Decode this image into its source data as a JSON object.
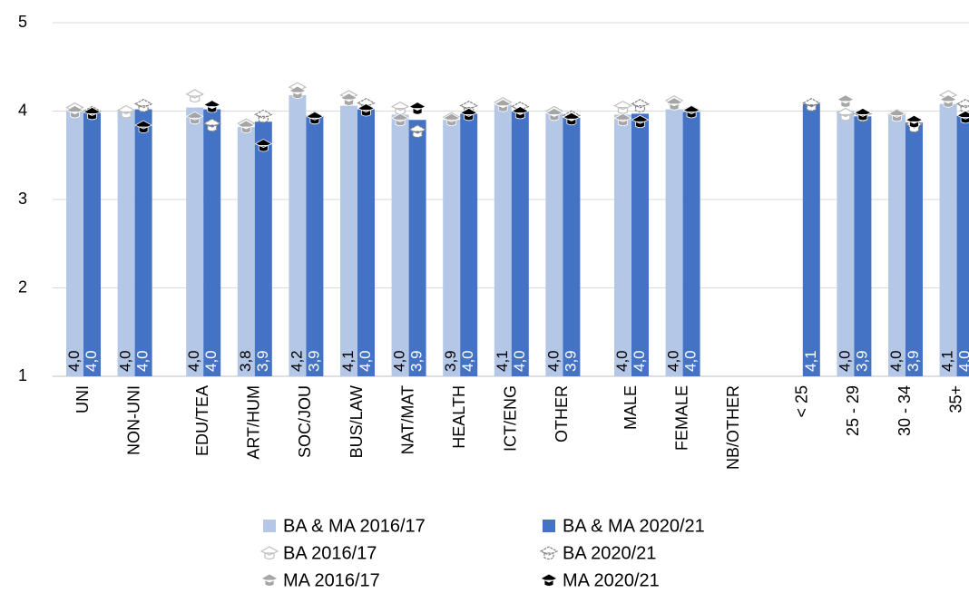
{
  "chart_data": {
    "type": "bar",
    "categories": [
      "UNI",
      "NON-UNI",
      "EDU/TEA",
      "ART/HUM",
      "SOC/JOU",
      "BUS/LAW",
      "NAT/MAT",
      "HEALTH",
      "ICT/ENG",
      "OTHER",
      "MALE",
      "FEMALE",
      "NB/OTHER",
      "< 25",
      "25 - 29",
      "30 - 34",
      "35+"
    ],
    "ylim": [
      1,
      5
    ],
    "yticks": [
      1,
      2,
      3,
      4,
      5
    ],
    "grid": true,
    "series": [
      {
        "name": "BA & MA 2016/17",
        "type": "bar",
        "color": "#b4c7e7",
        "values": [
          4.02,
          4.0,
          4.04,
          3.82,
          4.18,
          4.06,
          3.96,
          3.9,
          4.08,
          3.98,
          3.96,
          4.02,
          null,
          null,
          4.0,
          3.98,
          4.08
        ],
        "value_labels": [
          "4,0",
          "4,0",
          "4,0",
          "3,8",
          "4,2",
          "4,1",
          "4,0",
          "3,9",
          "4,1",
          "4,0",
          "4,0",
          "4,0",
          null,
          null,
          "4,0",
          "4,0",
          "4,1"
        ]
      },
      {
        "name": "BA & MA 2020/21",
        "type": "bar",
        "color": "#4472c4",
        "values": [
          3.98,
          4.02,
          4.02,
          3.88,
          3.94,
          4.02,
          3.9,
          3.97,
          4.0,
          3.93,
          3.97,
          3.99,
          null,
          4.08,
          3.94,
          3.87,
          3.95
        ],
        "value_labels": [
          "4,0",
          "4,0",
          "4,0",
          "3,9",
          "3,9",
          "4,0",
          "3,9",
          "4,0",
          "4,0",
          "3,9",
          "4,0",
          "4,0",
          null,
          "4,1",
          "3,9",
          "3,9",
          "4,0"
        ]
      },
      {
        "name": "BA 2016/17",
        "type": "marker",
        "style": "outline",
        "color": "#bfbfbf",
        "values": [
          4.03,
          4.0,
          4.18,
          3.85,
          4.26,
          4.17,
          4.04,
          3.92,
          4.09,
          3.99,
          4.05,
          4.11,
          null,
          null,
          3.97,
          3.96,
          4.17
        ]
      },
      {
        "name": "BA 2020/21",
        "type": "marker",
        "style": "striped",
        "color": "#808080",
        "values": [
          3.99,
          4.07,
          3.85,
          3.95,
          3.93,
          4.08,
          3.78,
          4.05,
          4.04,
          3.94,
          4.07,
          4.0,
          null,
          4.08,
          3.96,
          3.84,
          4.07
        ]
      },
      {
        "name": "MA 2016/17",
        "type": "marker",
        "style": "filled",
        "color": "#a6a6a6",
        "values": [
          4.0,
          null,
          3.93,
          3.83,
          4.22,
          4.14,
          3.91,
          3.91,
          4.07,
          3.97,
          3.91,
          4.09,
          null,
          null,
          4.12,
          3.96,
          4.12
        ]
      },
      {
        "name": "MA 2020/21",
        "type": "marker",
        "style": "filled",
        "color": "#000000",
        "values": [
          3.98,
          3.83,
          4.06,
          3.62,
          3.93,
          4.02,
          4.04,
          3.97,
          3.99,
          3.92,
          3.89,
          4.0,
          null,
          null,
          3.97,
          3.89,
          3.94
        ]
      }
    ]
  }
}
